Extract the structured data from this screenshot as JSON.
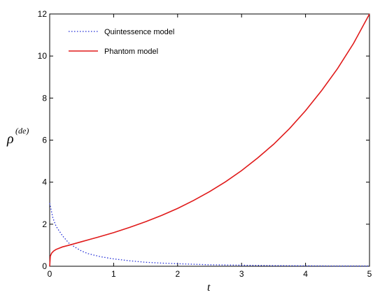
{
  "chart_data": {
    "type": "line",
    "title": "",
    "xlabel": "t",
    "ylabel": {
      "base": "ρ",
      "superscript": "(de)"
    },
    "xlim": [
      0,
      5
    ],
    "ylim": [
      0,
      12
    ],
    "x_ticks": [
      "0",
      "1",
      "2",
      "3",
      "4",
      "5"
    ],
    "y_ticks": [
      "0",
      "2",
      "4",
      "6",
      "8",
      "10",
      "12"
    ],
    "grid": false,
    "legend_position": "top-left",
    "series": [
      {
        "name": "Quintessence model",
        "color": "#1f2bd6",
        "line_style": "dotted",
        "points": [
          [
            0.0,
            3.0
          ],
          [
            0.05,
            2.3
          ],
          [
            0.1,
            1.9
          ],
          [
            0.2,
            1.45
          ],
          [
            0.3,
            1.1
          ],
          [
            0.4,
            0.9
          ],
          [
            0.5,
            0.72
          ],
          [
            0.6,
            0.6
          ],
          [
            0.8,
            0.45
          ],
          [
            1.0,
            0.35
          ],
          [
            1.25,
            0.26
          ],
          [
            1.5,
            0.19
          ],
          [
            1.75,
            0.15
          ],
          [
            2.0,
            0.12
          ],
          [
            2.5,
            0.07
          ],
          [
            3.0,
            0.05
          ],
          [
            3.5,
            0.03
          ],
          [
            4.0,
            0.02
          ],
          [
            4.5,
            0.01
          ],
          [
            5.0,
            0.01
          ]
        ]
      },
      {
        "name": "Phantom model",
        "color": "#e01a1a",
        "line_style": "solid",
        "points": [
          [
            0.0,
            0.0
          ],
          [
            0.01,
            0.48
          ],
          [
            0.03,
            0.62
          ],
          [
            0.06,
            0.72
          ],
          [
            0.1,
            0.8
          ],
          [
            0.2,
            0.92
          ],
          [
            0.3,
            1.0
          ],
          [
            0.5,
            1.17
          ],
          [
            0.75,
            1.38
          ],
          [
            1.0,
            1.6
          ],
          [
            1.25,
            1.85
          ],
          [
            1.5,
            2.12
          ],
          [
            1.75,
            2.42
          ],
          [
            2.0,
            2.75
          ],
          [
            2.25,
            3.13
          ],
          [
            2.5,
            3.55
          ],
          [
            2.75,
            4.02
          ],
          [
            3.0,
            4.55
          ],
          [
            3.25,
            5.15
          ],
          [
            3.5,
            5.8
          ],
          [
            3.75,
            6.55
          ],
          [
            4.0,
            7.4
          ],
          [
            4.25,
            8.35
          ],
          [
            4.5,
            9.4
          ],
          [
            4.75,
            10.6
          ],
          [
            5.0,
            12.0
          ]
        ]
      }
    ]
  }
}
